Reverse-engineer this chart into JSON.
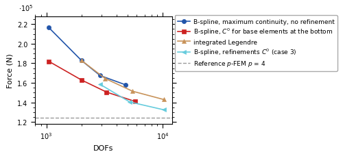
{
  "xlabel": "DOFs",
  "ylabel": "Force (N)",
  "ylim": [
    118000.0,
    228000.0
  ],
  "xlim_log": [
    2.9,
    4.08
  ],
  "yticks": [
    120000.0,
    140000.0,
    160000.0,
    180000.0,
    200000.0,
    220000.0
  ],
  "reference_y": 124500.0,
  "series": [
    {
      "label": "B-spline, maximum continuity, no refinement",
      "color": "#2255aa",
      "marker": "o",
      "markersize": 4.5,
      "linestyle": "-",
      "linewidth": 1.2,
      "x": [
        1050,
        2000,
        2900,
        4800
      ],
      "y": [
        216500.0,
        183000.0,
        167500.0,
        158000.0
      ]
    },
    {
      "label": "B-spline, $C^0$ for base elements at the bottom",
      "color": "#cc2222",
      "marker": "s",
      "markersize": 4.5,
      "linestyle": "-",
      "linewidth": 1.2,
      "x": [
        1050,
        2000,
        3300,
        5800
      ],
      "y": [
        182000.0,
        163000.0,
        150500.0,
        141000.0
      ]
    },
    {
      "label": "integrated Legendre",
      "color": "#c8935a",
      "marker": "^",
      "markersize": 4.5,
      "linestyle": "-",
      "linewidth": 1.2,
      "x": [
        2000,
        3200,
        5500,
        10200
      ],
      "y": [
        183000.0,
        164500.0,
        151500.0,
        143000.0
      ]
    },
    {
      "label": "B-spline, refinements $C^0$ (case 3)",
      "color": "#66ccdd",
      "marker": "<",
      "markersize": 4.5,
      "linestyle": "-",
      "linewidth": 1.2,
      "x": [
        2900,
        5200,
        10200
      ],
      "y": [
        158500.0,
        140500.0,
        132500.0
      ]
    }
  ],
  "ref_label": "Reference $p$-FEM $p$ = 4",
  "ref_color": "#999999",
  "legend_fontsize": 6.5,
  "axis_fontsize": 8,
  "tick_fontsize": 7
}
